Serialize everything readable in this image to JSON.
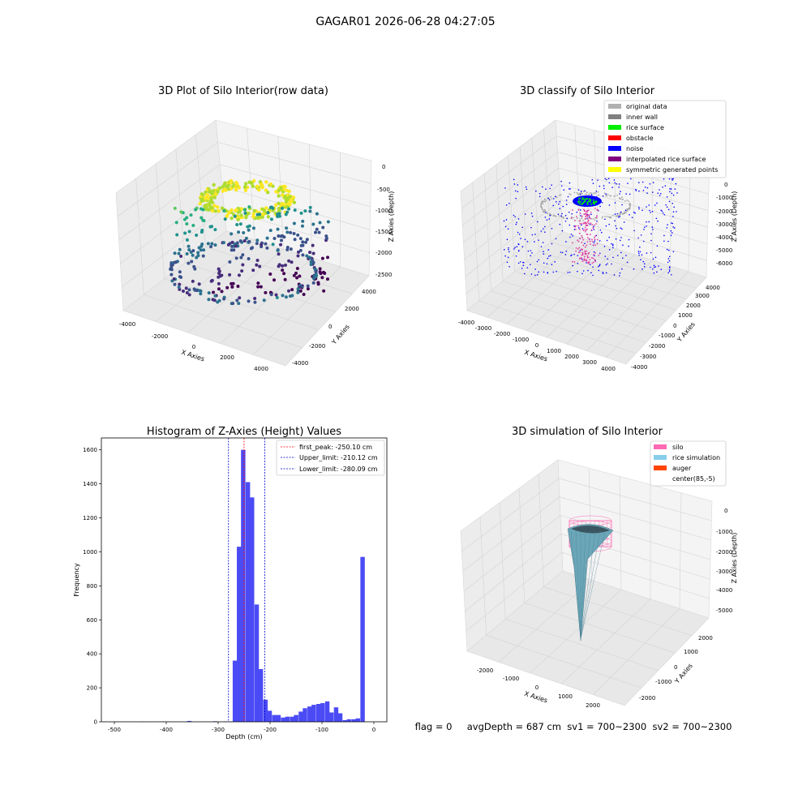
{
  "figure": {
    "suptitle": "GAGAR01 2026-06-28 04:27:05",
    "status_line": "flag = 0     avgDepth = 687 cm  sv1 = 700~2300  sv2 = 700~2300"
  },
  "colors": {
    "hist_bar": "#4b4bf5",
    "first_peak": "#ff0000",
    "limits": "#0000cc",
    "pane": "#f2f2f2",
    "grid": "#d8d8d8"
  },
  "chart_data": [
    {
      "type": "scatter",
      "projection": "3d",
      "title": "3D Plot of Silo Interior(row data)",
      "xlabel": "X Axies",
      "ylabel": "Y Axies",
      "zlabel": "Z Axies (Depth)",
      "xticks": [
        "-4000",
        "-2000",
        "0",
        "2000",
        "4000"
      ],
      "yticks": [
        "-4000",
        "-2000",
        "0",
        "2000",
        "4000"
      ],
      "zticks": [
        "0",
        "-500",
        "-1000",
        "-1500",
        "-2000",
        "-2500"
      ],
      "xlim": [
        -4500,
        4500
      ],
      "ylim": [
        -4500,
        4500
      ],
      "zlim": [
        -2800,
        0
      ],
      "colormap": "viridis",
      "grid": true
    },
    {
      "type": "scatter",
      "projection": "3d",
      "title": "3D classify of Silo Interior",
      "xlabel": "X Axies",
      "ylabel": "Y Axies",
      "zlabel": "Z Axies (Depth)",
      "xticks": [
        "-4000",
        "-3000",
        "-2000",
        "-1000",
        "0",
        "1000",
        "2000",
        "3000",
        "4000"
      ],
      "yticks": [
        "-4000",
        "-3000",
        "-2000",
        "-1000",
        "0",
        "1000",
        "2000",
        "3000",
        "4000"
      ],
      "zticks": [
        "0",
        "-1000",
        "-2000",
        "-3000",
        "-4000",
        "-5000",
        "-6000"
      ],
      "xlim": [
        -4200,
        4200
      ],
      "ylim": [
        -4200,
        4200
      ],
      "zlim": [
        -6500,
        300
      ],
      "legend_position": "upper right",
      "legend": [
        {
          "label": "original data",
          "color": "#b0b0b0"
        },
        {
          "label": "inner wall",
          "color": "#808080"
        },
        {
          "label": "rice surface",
          "color": "#00ee00"
        },
        {
          "label": "obstacle",
          "color": "#ff0000"
        },
        {
          "label": "noise",
          "color": "#0000ff"
        },
        {
          "label": "interpolated rice surface",
          "color": "#800080"
        },
        {
          "label": "symmetric generated points",
          "color": "#ffff00"
        }
      ],
      "grid": true
    },
    {
      "type": "bar",
      "title": "Histogram of Z-Axies (Height) Values",
      "xlabel": "Depth (cm)",
      "ylabel": "Frequency",
      "xlim": [
        -525,
        25
      ],
      "ylim": [
        0,
        1670
      ],
      "xticks": [
        -500,
        -400,
        -300,
        -200,
        -100,
        0
      ],
      "yticks": [
        0,
        200,
        400,
        600,
        800,
        1000,
        1200,
        1400,
        1600
      ],
      "bin_width": 8.5,
      "bins": [
        [
          -500,
          1
        ],
        [
          -450,
          1
        ],
        [
          -410,
          1
        ],
        [
          -400,
          1
        ],
        [
          -360,
          5
        ],
        [
          -310,
          3
        ],
        [
          -290,
          2
        ],
        [
          -280,
          2
        ],
        [
          -272,
          360
        ],
        [
          -264,
          1030
        ],
        [
          -256,
          1600
        ],
        [
          -247,
          1410
        ],
        [
          -239,
          1320
        ],
        [
          -230,
          690
        ],
        [
          -222,
          310
        ],
        [
          -213,
          130
        ],
        [
          -205,
          65
        ],
        [
          -196,
          40
        ],
        [
          -188,
          40
        ],
        [
          -179,
          25
        ],
        [
          -171,
          30
        ],
        [
          -162,
          30
        ],
        [
          -154,
          40
        ],
        [
          -145,
          60
        ],
        [
          -137,
          80
        ],
        [
          -128,
          90
        ],
        [
          -120,
          100
        ],
        [
          -111,
          105
        ],
        [
          -103,
          110
        ],
        [
          -94,
          120
        ],
        [
          -86,
          55
        ],
        [
          -77,
          85
        ],
        [
          -69,
          50
        ],
        [
          -60,
          10
        ],
        [
          -52,
          15
        ],
        [
          -43,
          15
        ],
        [
          -35,
          20
        ],
        [
          -26,
          970
        ]
      ],
      "vlines": [
        {
          "name": "first_peak",
          "label": "first_peak: -250.10 cm",
          "x": -250.1,
          "color": "#ff0000"
        },
        {
          "name": "upper-limit",
          "label": "Upper_limit: -210.12 cm",
          "x": -210.12,
          "color": "#0000cc"
        },
        {
          "name": "lower-limit",
          "label": "Lower_limit: -280.09 cm",
          "x": -280.09,
          "color": "#0000cc"
        }
      ],
      "legend_position": "upper right",
      "grid": false
    },
    {
      "type": "area",
      "projection": "3d",
      "title": "3D simulation of Silo Interior",
      "xlabel": "X Axies",
      "ylabel": "Y Axies",
      "zlabel": "Z Axies (Depth)",
      "xticks": [
        "-2000",
        "-1000",
        "0",
        "1000",
        "2000"
      ],
      "yticks": [
        "-2000",
        "-1000",
        "0",
        "1000",
        "2000"
      ],
      "zticks": [
        "0",
        "-1000",
        "-2000",
        "-3000",
        "-4000",
        "-5000"
      ],
      "xlim": [
        -2600,
        2600
      ],
      "ylim": [
        -2600,
        2600
      ],
      "zlim": [
        -5500,
        300
      ],
      "legend_position": "upper right",
      "legend": [
        {
          "label": "silo",
          "color": "#ff69b4"
        },
        {
          "label": "rice simulation",
          "color": "#87ceeb"
        },
        {
          "label": "auger",
          "color": "#ff4500"
        },
        {
          "label": "center(85,-5)",
          "color": ""
        }
      ],
      "grid": true
    }
  ]
}
